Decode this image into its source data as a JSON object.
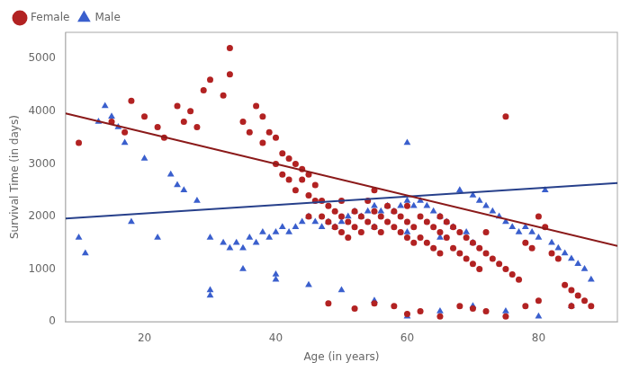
{
  "chart_data": {
    "type": "scatter",
    "xlabel": "Age (in years)",
    "ylabel": "Survival Time (in days)",
    "xlim": [
      8,
      92
    ],
    "ylim": [
      0,
      5500
    ],
    "xticks": [
      20,
      40,
      60,
      80
    ],
    "yticks": [
      0,
      1000,
      2000,
      3000,
      4000,
      5000
    ],
    "grid": false,
    "legend": "upper left",
    "series": [
      {
        "name": "Female",
        "color": "#b22222",
        "marker": "circle",
        "x": [
          10,
          15,
          17,
          18,
          20,
          22,
          23,
          25,
          26,
          27,
          28,
          29,
          30,
          32,
          33,
          33,
          35,
          36,
          37,
          38,
          38,
          39,
          40,
          40,
          41,
          41,
          42,
          42,
          43,
          43,
          44,
          44,
          45,
          45,
          45,
          46,
          46,
          47,
          47,
          48,
          48,
          49,
          49,
          50,
          50,
          50,
          51,
          51,
          52,
          52,
          53,
          53,
          54,
          54,
          55,
          55,
          55,
          56,
          56,
          57,
          57,
          58,
          58,
          59,
          59,
          60,
          60,
          60,
          61,
          61,
          62,
          62,
          63,
          63,
          64,
          64,
          65,
          65,
          65,
          66,
          66,
          67,
          67,
          68,
          68,
          69,
          69,
          70,
          70,
          71,
          71,
          72,
          72,
          73,
          74,
          75,
          75,
          76,
          77,
          78,
          79,
          80,
          81,
          82,
          83,
          84,
          85,
          86,
          87,
          88,
          55,
          60,
          65,
          70,
          75,
          80,
          85,
          48,
          52,
          58,
          62,
          68,
          72,
          78
        ],
        "values": [
          3400,
          3800,
          3600,
          4200,
          3900,
          3700,
          3500,
          4100,
          3800,
          4000,
          3700,
          4400,
          4600,
          4300,
          4700,
          5200,
          3800,
          3600,
          4100,
          3400,
          3900,
          3600,
          3000,
          3500,
          2800,
          3200,
          2700,
          3100,
          2500,
          3000,
          2700,
          2900,
          2000,
          2400,
          2800,
          2300,
          2600,
          2000,
          2300,
          1900,
          2200,
          1800,
          2100,
          1700,
          2000,
          2300,
          1600,
          1900,
          1800,
          2100,
          1700,
          2000,
          1900,
          2300,
          1800,
          2100,
          2500,
          1700,
          2000,
          1900,
          2200,
          1800,
          2100,
          1700,
          2000,
          1600,
          1900,
          2200,
          1500,
          1800,
          1600,
          2000,
          1500,
          1900,
          1400,
          1800,
          1300,
          1700,
          2000,
          1600,
          1900,
          1400,
          1800,
          1300,
          1700,
          1200,
          1600,
          1100,
          1500,
          1000,
          1400,
          1300,
          1700,
          1200,
          1100,
          1000,
          3900,
          900,
          800,
          1500,
          1400,
          2000,
          1800,
          1300,
          1200,
          700,
          600,
          500,
          400,
          300,
          350,
          150,
          100,
          250,
          100,
          400,
          300,
          350,
          250,
          300,
          200,
          300,
          200,
          300
        ]
      },
      {
        "name": "Male",
        "color": "#3a5fcd",
        "marker": "triangle",
        "x": [
          10,
          11,
          13,
          14,
          15,
          16,
          17,
          18,
          20,
          22,
          24,
          25,
          26,
          28,
          30,
          30,
          32,
          33,
          34,
          35,
          36,
          37,
          38,
          39,
          40,
          40,
          41,
          42,
          43,
          44,
          45,
          46,
          47,
          48,
          49,
          50,
          51,
          52,
          53,
          54,
          55,
          56,
          57,
          58,
          59,
          60,
          60,
          61,
          62,
          63,
          64,
          65,
          66,
          67,
          68,
          69,
          70,
          71,
          72,
          73,
          74,
          75,
          76,
          77,
          78,
          79,
          80,
          81,
          82,
          83,
          84,
          85,
          86,
          87,
          88,
          50,
          55,
          60,
          65,
          70,
          75,
          80,
          85,
          45,
          40,
          35,
          30,
          55,
          60,
          65,
          70
        ],
        "values": [
          1600,
          1300,
          3800,
          4100,
          3900,
          3700,
          3400,
          1900,
          3100,
          1600,
          2800,
          2600,
          2500,
          2300,
          1600,
          500,
          1500,
          1400,
          1500,
          1400,
          1600,
          1500,
          1700,
          1600,
          1700,
          800,
          1800,
          1700,
          1800,
          1900,
          2000,
          1900,
          1800,
          1900,
          1800,
          1900,
          2000,
          2100,
          2000,
          2100,
          2200,
          2100,
          2200,
          2100,
          2200,
          2300,
          3400,
          2200,
          2300,
          2200,
          2100,
          2000,
          1900,
          1800,
          2500,
          1700,
          2400,
          2300,
          2200,
          2100,
          2000,
          1900,
          1800,
          1700,
          1800,
          1700,
          1600,
          2500,
          1500,
          1400,
          1300,
          1200,
          1100,
          1000,
          800,
          600,
          400,
          100,
          200,
          300,
          200,
          100,
          300,
          700,
          900,
          1000,
          600,
          1800,
          1700,
          1600,
          1500
        ]
      },
      {
        "type": "line",
        "color": "#8b1a1a",
        "line_style": "solid",
        "x": [
          8,
          92
        ],
        "values": [
          3960,
          1440
        ]
      },
      {
        "type": "line",
        "color": "#27408b",
        "line_style": "solid",
        "x": [
          8,
          92
        ],
        "values": [
          1964,
          2636
        ]
      }
    ]
  }
}
